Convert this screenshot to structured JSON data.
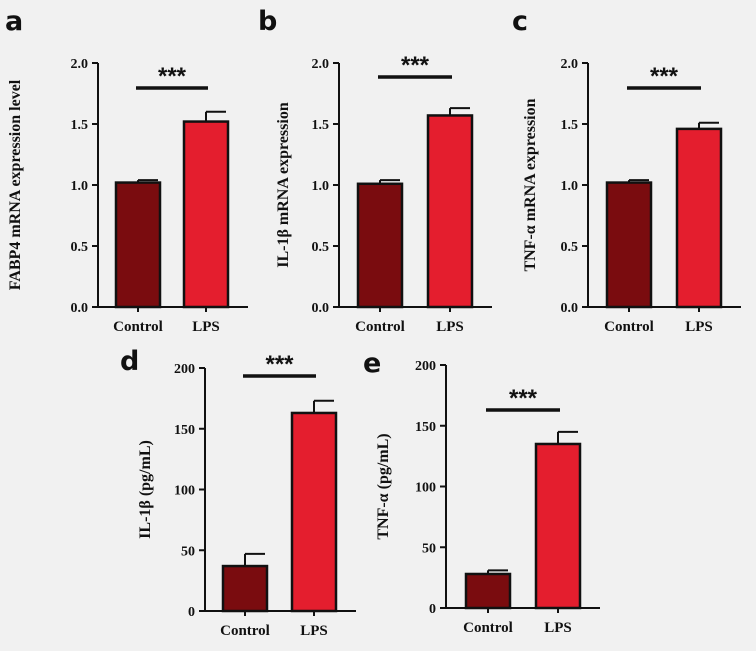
{
  "colors": {
    "control": "#7a0c0f",
    "lps": "#e41e2e",
    "axis": "#111111",
    "background": "#f1f1f1"
  },
  "chart_data": [
    {
      "panel": "a",
      "type": "bar",
      "categories": [
        "Control",
        "LPS"
      ],
      "values": [
        1.02,
        1.52
      ],
      "errors": [
        0.02,
        0.08
      ],
      "ylabel": "FABP4 mRNA expression level",
      "ylim": [
        0,
        2.0
      ],
      "yticks": [
        "0.0",
        "0.5",
        "1.0",
        "1.5",
        "2.0"
      ],
      "significance": "***"
    },
    {
      "panel": "b",
      "type": "bar",
      "categories": [
        "Control",
        "LPS"
      ],
      "values": [
        1.01,
        1.57
      ],
      "errors": [
        0.03,
        0.06
      ],
      "ylabel": "IL-1β mRNA expression",
      "ylim": [
        0,
        2.0
      ],
      "yticks": [
        "0.0",
        "0.5",
        "1.0",
        "1.5",
        "2.0"
      ],
      "significance": "***"
    },
    {
      "panel": "c",
      "type": "bar",
      "categories": [
        "Control",
        "LPS"
      ],
      "values": [
        1.02,
        1.46
      ],
      "errors": [
        0.02,
        0.05
      ],
      "ylabel": "TNF-α mRNA expression",
      "ylim": [
        0,
        2.0
      ],
      "yticks": [
        "0.0",
        "0.5",
        "1.0",
        "1.5",
        "2.0"
      ],
      "significance": "***"
    },
    {
      "panel": "d",
      "type": "bar",
      "categories": [
        "Control",
        "LPS"
      ],
      "values": [
        37,
        163
      ],
      "errors": [
        10,
        10
      ],
      "ylabel": "IL-1β (pg/mL)",
      "ylim": [
        0,
        200
      ],
      "yticks": [
        "0",
        "50",
        "100",
        "150",
        "200"
      ],
      "significance": "***"
    },
    {
      "panel": "e",
      "type": "bar",
      "categories": [
        "Control",
        "LPS"
      ],
      "values": [
        28,
        135
      ],
      "errors": [
        3,
        10
      ],
      "ylabel": "TNF-α (pg/mL)",
      "ylim": [
        0,
        200
      ],
      "yticks": [
        "0",
        "50",
        "100",
        "150",
        "200"
      ],
      "significance": "***"
    }
  ]
}
